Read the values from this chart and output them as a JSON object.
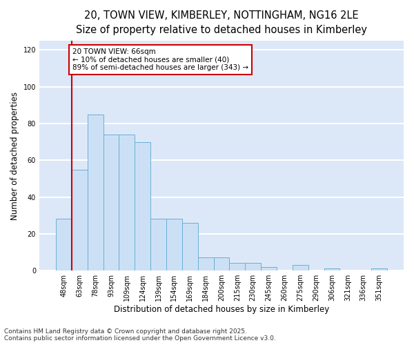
{
  "title_line1": "20, TOWN VIEW, KIMBERLEY, NOTTINGHAM, NG16 2LE",
  "title_line2": "Size of property relative to detached houses in Kimberley",
  "xlabel": "Distribution of detached houses by size in Kimberley",
  "ylabel": "Number of detached properties",
  "categories": [
    "48sqm",
    "63sqm",
    "78sqm",
    "93sqm",
    "109sqm",
    "124sqm",
    "139sqm",
    "154sqm",
    "169sqm",
    "184sqm",
    "200sqm",
    "215sqm",
    "230sqm",
    "245sqm",
    "260sqm",
    "275sqm",
    "290sqm",
    "306sqm",
    "321sqm",
    "336sqm",
    "351sqm"
  ],
  "values": [
    28,
    55,
    85,
    74,
    74,
    70,
    28,
    28,
    26,
    7,
    7,
    4,
    4,
    2,
    0,
    3,
    0,
    1,
    0,
    0,
    1
  ],
  "bar_color": "#cce0f5",
  "bar_edge_color": "#6aaed6",
  "vline_color": "#cc0000",
  "vline_pos": 0.5,
  "annotation_text": "20 TOWN VIEW: 66sqm\n← 10% of detached houses are smaller (40)\n89% of semi-detached houses are larger (343) →",
  "annotation_box_color": "white",
  "annotation_box_edge": "#cc0000",
  "ylim": [
    0,
    125
  ],
  "yticks": [
    0,
    20,
    40,
    60,
    80,
    100,
    120
  ],
  "background_color": "#dce8f8",
  "grid_color": "white",
  "footer_line1": "Contains HM Land Registry data © Crown copyright and database right 2025.",
  "footer_line2": "Contains public sector information licensed under the Open Government Licence v3.0.",
  "title_fontsize": 10.5,
  "subtitle_fontsize": 9.5,
  "axis_label_fontsize": 8.5,
  "tick_fontsize": 7,
  "annotation_fontsize": 7.5,
  "footer_fontsize": 6.5
}
